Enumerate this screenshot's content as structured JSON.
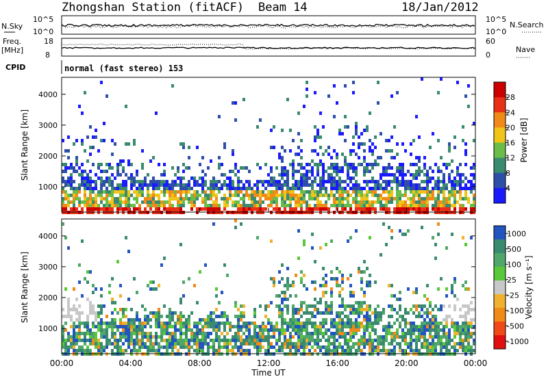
{
  "header": {
    "station": "Zhongshan Station (fitACF)",
    "beam": "Beam 14",
    "date": "18/Jan/2012"
  },
  "top_panels": {
    "nsky_label": "N.Sky",
    "nsky_ticks": [
      "10^5",
      "10^0"
    ],
    "nsearch_label": "N.Search",
    "nsearch_ticks": [
      "10^5",
      "10^0"
    ],
    "freq_label": "Freq.",
    "freq_unit": "[MHz]",
    "freq_ticks": [
      "18",
      "8"
    ],
    "nave_label": "Nave",
    "nave_ticks": [
      "60",
      "0"
    ],
    "cpid_label": "CPID",
    "cpid_text": "normal (fast stereo) 153"
  },
  "chart_data": [
    {
      "type": "heatmap",
      "name": "power",
      "ylabel": "Slant Range [km]",
      "yticks": [
        "1000",
        "2000",
        "3000",
        "4000"
      ],
      "ylim": [
        180,
        4550
      ],
      "xlim": [
        0,
        24
      ],
      "colorbar_label": "Power [dB]",
      "colorbar_ticks": [
        "4",
        "8",
        "12",
        "16",
        "20",
        "24",
        "28"
      ],
      "colors": [
        "#1a1aff",
        "#2e4fa8",
        "#3a8a70",
        "#69bd48",
        "#f0c419",
        "#f08a18",
        "#e83018",
        "#cc0000"
      ]
    },
    {
      "type": "heatmap",
      "name": "velocity",
      "ylabel": "Slant Range [km]",
      "yticks": [
        "1000",
        "2000",
        "3000",
        "4000"
      ],
      "ylim": [
        180,
        4550
      ],
      "xlim": [
        0,
        24
      ],
      "colorbar_label": "Velocity [m s⁻¹]",
      "colorbar_ticks": [
        "1000",
        "500",
        "100",
        "25",
        "-25",
        "-100",
        "-500",
        "-1000"
      ],
      "colors": [
        "#2255c0",
        "#3a8a70",
        "#4fa86a",
        "#5ac838",
        "#c8c8c8",
        "#f0b030",
        "#f08a18",
        "#f04a18",
        "#e01010"
      ]
    }
  ],
  "x_axis": {
    "ticks": [
      "00:00",
      "04:00",
      "08:00",
      "12:00",
      "16:00",
      "20:00",
      "00:00"
    ],
    "label": "Time UT"
  }
}
